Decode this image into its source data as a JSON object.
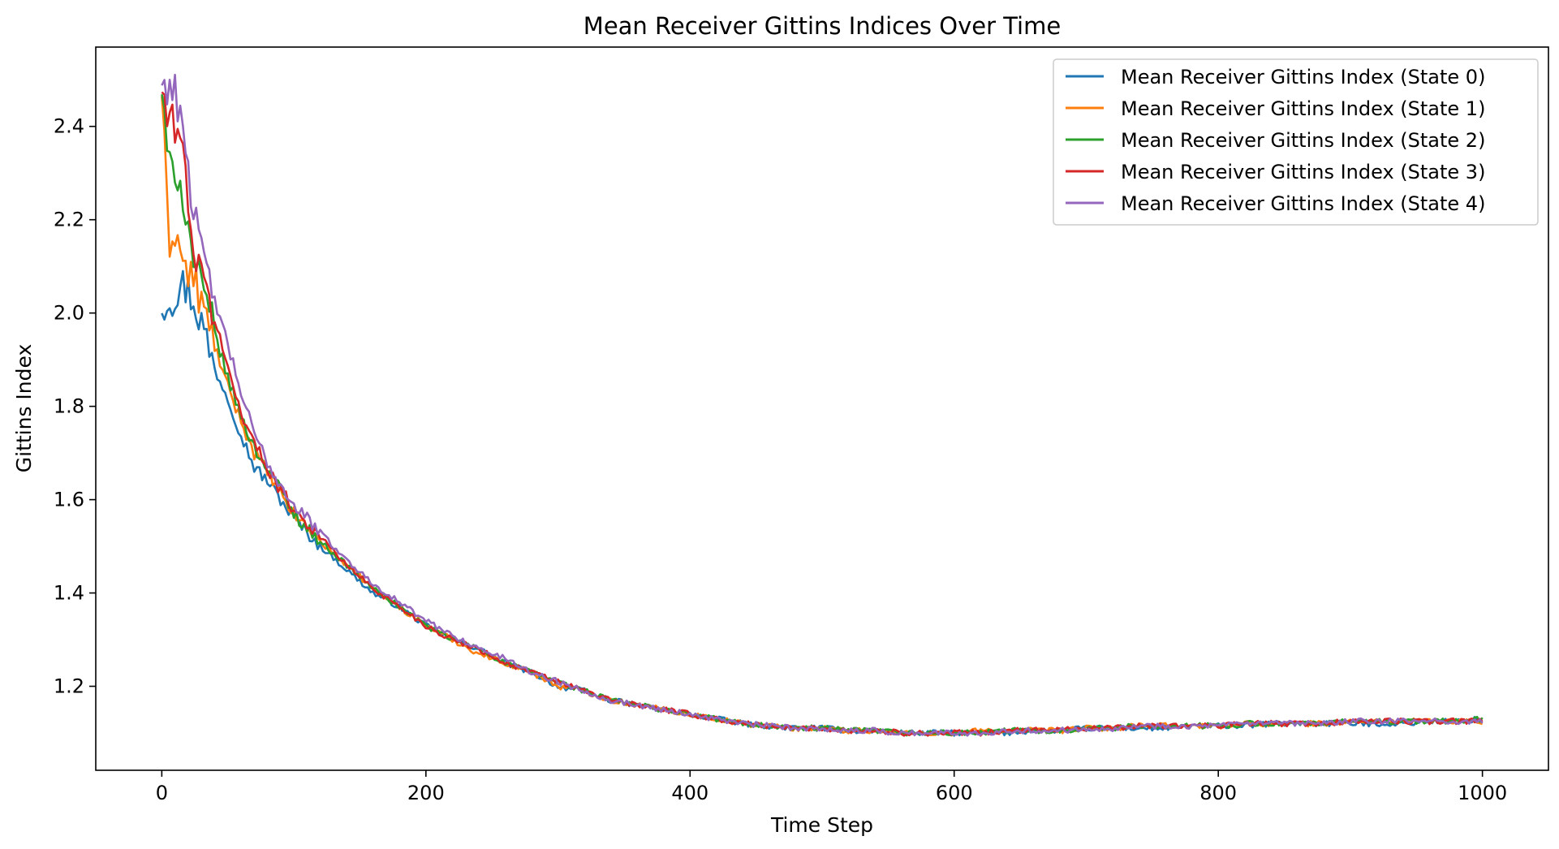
{
  "chart_data": {
    "type": "line",
    "title": "Mean Receiver Gittins Indices Over Time",
    "xlabel": "Time Step",
    "ylabel": "Gittins Index",
    "xlim": [
      -50,
      1050
    ],
    "ylim": [
      1.02,
      2.57
    ],
    "xticks": [
      0,
      200,
      400,
      600,
      800,
      1000
    ],
    "xtick_labels": [
      "0",
      "200",
      "400",
      "600",
      "800",
      "1000"
    ],
    "yticks": [
      1.2,
      1.4,
      1.6,
      1.8,
      2.0,
      2.2,
      2.4
    ],
    "ytick_labels": [
      "1.2",
      "1.4",
      "1.6",
      "1.8",
      "2.0",
      "2.2",
      "2.4"
    ],
    "grid": false,
    "legend_position": "upper right",
    "x": [
      0,
      5,
      10,
      15,
      20,
      25,
      30,
      40,
      50,
      60,
      70,
      80,
      90,
      100,
      120,
      140,
      160,
      180,
      200,
      220,
      240,
      260,
      280,
      300,
      320,
      340,
      360,
      380,
      400,
      420,
      440,
      460,
      480,
      500,
      520,
      540,
      560,
      580,
      600,
      620,
      640,
      660,
      680,
      700,
      720,
      740,
      760,
      780,
      800,
      820,
      840,
      860,
      880,
      900,
      920,
      940,
      960,
      980,
      1000
    ],
    "series": [
      {
        "name": "Mean Receiver Gittins Index (State 0)",
        "color": "#1f77b4",
        "values": [
          2.02,
          2.03,
          2.04,
          2.06,
          2.05,
          2.02,
          1.98,
          1.88,
          1.82,
          1.74,
          1.67,
          1.64,
          1.6,
          1.56,
          1.5,
          1.45,
          1.4,
          1.37,
          1.33,
          1.3,
          1.28,
          1.25,
          1.23,
          1.2,
          1.19,
          1.17,
          1.16,
          1.15,
          1.14,
          1.13,
          1.12,
          1.115,
          1.11,
          1.11,
          1.105,
          1.105,
          1.1,
          1.1,
          1.1,
          1.1,
          1.1,
          1.105,
          1.105,
          1.11,
          1.11,
          1.11,
          1.11,
          1.115,
          1.115,
          1.115,
          1.12,
          1.12,
          1.12,
          1.12,
          1.12,
          1.12,
          1.125,
          1.125,
          1.13
        ]
      },
      {
        "name": "Mean Receiver Gittins Index (State 1)",
        "color": "#ff7f0e",
        "values": [
          2.48,
          2.15,
          2.18,
          2.12,
          2.08,
          2.07,
          2.02,
          1.93,
          1.84,
          1.77,
          1.7,
          1.66,
          1.61,
          1.57,
          1.51,
          1.46,
          1.41,
          1.37,
          1.33,
          1.3,
          1.27,
          1.25,
          1.23,
          1.2,
          1.19,
          1.17,
          1.16,
          1.15,
          1.14,
          1.13,
          1.12,
          1.115,
          1.11,
          1.11,
          1.105,
          1.105,
          1.1,
          1.1,
          1.1,
          1.105,
          1.105,
          1.105,
          1.105,
          1.11,
          1.11,
          1.115,
          1.115,
          1.115,
          1.115,
          1.12,
          1.12,
          1.12,
          1.12,
          1.125,
          1.125,
          1.125,
          1.125,
          1.125,
          1.125
        ]
      },
      {
        "name": "Mean Receiver Gittins Index (State 2)",
        "color": "#2ca02c",
        "values": [
          2.48,
          2.3,
          2.32,
          2.27,
          2.18,
          2.1,
          2.05,
          1.96,
          1.86,
          1.78,
          1.71,
          1.67,
          1.62,
          1.57,
          1.51,
          1.46,
          1.41,
          1.37,
          1.33,
          1.3,
          1.28,
          1.25,
          1.23,
          1.21,
          1.19,
          1.17,
          1.16,
          1.15,
          1.14,
          1.13,
          1.12,
          1.115,
          1.11,
          1.11,
          1.105,
          1.105,
          1.1,
          1.1,
          1.1,
          1.1,
          1.105,
          1.105,
          1.105,
          1.11,
          1.11,
          1.115,
          1.115,
          1.115,
          1.115,
          1.12,
          1.12,
          1.12,
          1.12,
          1.125,
          1.125,
          1.125,
          1.125,
          1.125,
          1.13
        ]
      },
      {
        "name": "Mean Receiver Gittins Index (State 3)",
        "color": "#d62728",
        "values": [
          2.48,
          2.4,
          2.41,
          2.36,
          2.25,
          2.12,
          2.07,
          1.99,
          1.88,
          1.79,
          1.72,
          1.67,
          1.62,
          1.58,
          1.52,
          1.46,
          1.41,
          1.37,
          1.33,
          1.3,
          1.28,
          1.25,
          1.23,
          1.21,
          1.19,
          1.17,
          1.16,
          1.15,
          1.14,
          1.13,
          1.12,
          1.115,
          1.11,
          1.11,
          1.105,
          1.105,
          1.1,
          1.1,
          1.1,
          1.1,
          1.105,
          1.105,
          1.11,
          1.11,
          1.11,
          1.115,
          1.115,
          1.115,
          1.115,
          1.12,
          1.12,
          1.12,
          1.12,
          1.125,
          1.125,
          1.125,
          1.125,
          1.125,
          1.125
        ]
      },
      {
        "name": "Mean Receiver Gittins Index (State 4)",
        "color": "#9467bd",
        "values": [
          2.49,
          2.49,
          2.47,
          2.43,
          2.32,
          2.2,
          2.12,
          2.03,
          1.93,
          1.83,
          1.74,
          1.68,
          1.63,
          1.59,
          1.53,
          1.47,
          1.42,
          1.38,
          1.34,
          1.31,
          1.28,
          1.26,
          1.23,
          1.21,
          1.19,
          1.17,
          1.16,
          1.15,
          1.14,
          1.13,
          1.12,
          1.115,
          1.11,
          1.11,
          1.105,
          1.105,
          1.1,
          1.1,
          1.1,
          1.1,
          1.105,
          1.105,
          1.105,
          1.11,
          1.11,
          1.115,
          1.115,
          1.115,
          1.115,
          1.12,
          1.12,
          1.12,
          1.12,
          1.125,
          1.125,
          1.125,
          1.125,
          1.125,
          1.125
        ]
      }
    ]
  }
}
